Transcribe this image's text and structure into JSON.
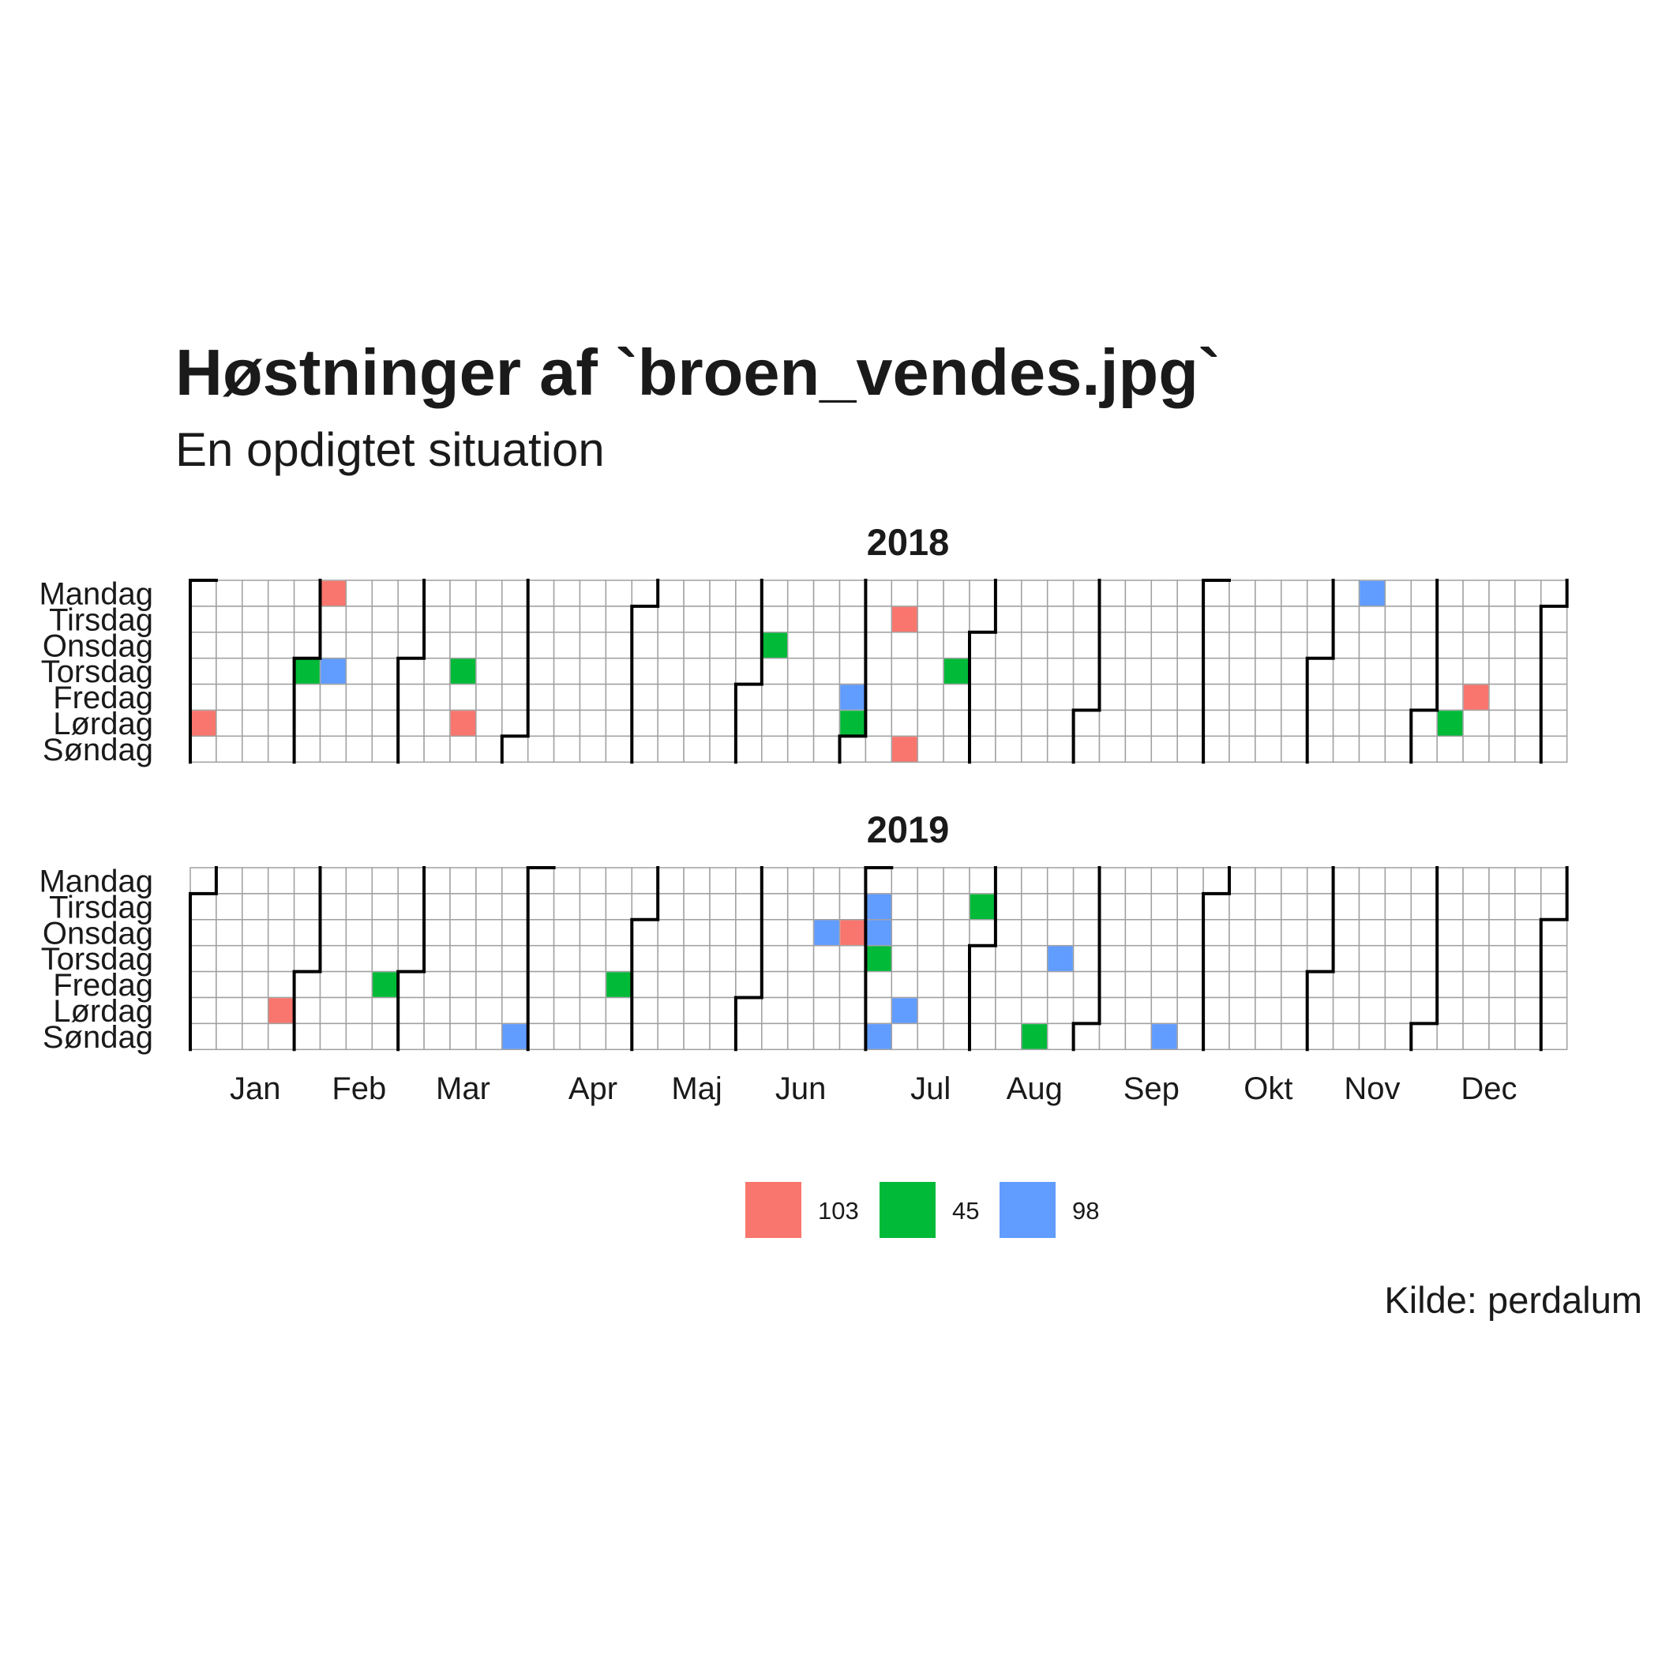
{
  "title": "Høstninger af `broen_vendes.jpg`",
  "subtitle": "En opdigtet situation",
  "caption": "Kilde: perdalum",
  "colors": {
    "103": "#F8766D",
    "45": "#00BA38",
    "98": "#619CFF"
  },
  "chart_data": {
    "type": "heatmap",
    "subtype": "calendar",
    "day_labels": [
      "Mandag",
      "Tirsdag",
      "Onsdag",
      "Torsdag",
      "Fredag",
      "Lørdag",
      "Søndag"
    ],
    "month_labels": [
      "Jan",
      "Feb",
      "Mar",
      "Apr",
      "Maj",
      "Jun",
      "Jul",
      "Aug",
      "Sep",
      "Okt",
      "Nov",
      "Dec"
    ],
    "legend": [
      "103",
      "45",
      "98"
    ],
    "panels": [
      {
        "year": "2018",
        "events": [
          {
            "date": "2018-01-06",
            "value": "103"
          },
          {
            "date": "2018-02-01",
            "value": "45"
          },
          {
            "date": "2018-02-05",
            "value": "103"
          },
          {
            "date": "2018-02-08",
            "value": "98"
          },
          {
            "date": "2018-03-15",
            "value": "45"
          },
          {
            "date": "2018-03-17",
            "value": "103"
          },
          {
            "date": "2018-06-06",
            "value": "45"
          },
          {
            "date": "2018-06-29",
            "value": "98"
          },
          {
            "date": "2018-06-30",
            "value": "45"
          },
          {
            "date": "2018-07-10",
            "value": "103"
          },
          {
            "date": "2018-07-15",
            "value": "103"
          },
          {
            "date": "2018-07-26",
            "value": "45"
          },
          {
            "date": "2018-11-12",
            "value": "98"
          },
          {
            "date": "2018-12-08",
            "value": "45"
          },
          {
            "date": "2018-12-14",
            "value": "103"
          }
        ]
      },
      {
        "year": "2019",
        "events": [
          {
            "date": "2019-01-26",
            "value": "103"
          },
          {
            "date": "2019-02-22",
            "value": "45"
          },
          {
            "date": "2019-03-31",
            "value": "98"
          },
          {
            "date": "2019-04-26",
            "value": "45"
          },
          {
            "date": "2019-06-19",
            "value": "98"
          },
          {
            "date": "2019-06-26",
            "value": "103"
          },
          {
            "date": "2019-07-02",
            "value": "98"
          },
          {
            "date": "2019-07-03",
            "value": "98"
          },
          {
            "date": "2019-07-04",
            "value": "45"
          },
          {
            "date": "2019-07-07",
            "value": "98"
          },
          {
            "date": "2019-07-13",
            "value": "98"
          },
          {
            "date": "2019-07-30",
            "value": "45"
          },
          {
            "date": "2019-08-18",
            "value": "45"
          },
          {
            "date": "2019-08-22",
            "value": "98"
          },
          {
            "date": "2019-09-22",
            "value": "98"
          }
        ]
      }
    ]
  }
}
